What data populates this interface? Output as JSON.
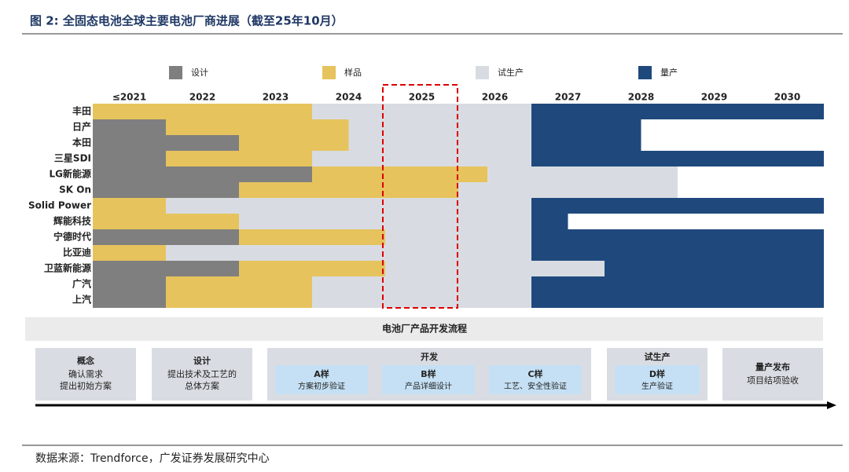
{
  "header": {
    "title": "图 2:  全固态电池全球主要电池厂商进展（截至25年10月）"
  },
  "chart_data": {
    "type": "gantt",
    "columns": [
      "≤2021",
      "2022",
      "2023",
      "2024",
      "2025",
      "2026",
      "2027",
      "2028",
      "2029",
      "2030"
    ],
    "xlim": [
      0,
      10
    ],
    "categories": [
      "丰田",
      "日产",
      "本田",
      "三星SDI",
      "LG新能源",
      "SK On",
      "Solid Power",
      "辉能科技",
      "宁德时代",
      "比亚迪",
      "卫蓝新能源",
      "广汽",
      "上汽"
    ],
    "series": [
      {
        "name": "设计",
        "color": "#7f7f7f",
        "values": [
          null,
          [
            0,
            1
          ],
          [
            0,
            2
          ],
          [
            0,
            1
          ],
          [
            0,
            3
          ],
          [
            0,
            2
          ],
          null,
          null,
          [
            0,
            2
          ],
          null,
          [
            0,
            2
          ],
          [
            0,
            1
          ],
          [
            0,
            1
          ]
        ]
      },
      {
        "name": "样品",
        "color": "#e6c35c",
        "values": [
          [
            0,
            3
          ],
          [
            1,
            3.5
          ],
          [
            2,
            3.5
          ],
          [
            1,
            3
          ],
          [
            3,
            5.4
          ],
          [
            2,
            5
          ],
          [
            0,
            1
          ],
          [
            0,
            2
          ],
          [
            2,
            4
          ],
          [
            0,
            1
          ],
          [
            2,
            4
          ],
          [
            1,
            3
          ],
          [
            1,
            3
          ]
        ]
      },
      {
        "name": "试生产",
        "color": "#d8dce2",
        "values": [
          [
            3,
            6
          ],
          [
            3.5,
            6
          ],
          [
            3.5,
            6
          ],
          [
            3,
            6
          ],
          [
            5.4,
            8
          ],
          [
            5,
            8
          ],
          [
            1,
            6
          ],
          [
            2,
            6
          ],
          [
            4,
            6
          ],
          [
            1,
            6
          ],
          [
            4,
            7
          ],
          [
            3,
            6
          ],
          [
            3,
            6
          ]
        ]
      },
      {
        "name": "量产",
        "color": "#1f497d",
        "values": [
          [
            6,
            10
          ],
          [
            6,
            7.5
          ],
          [
            6,
            7.5
          ],
          [
            6,
            10
          ],
          null,
          null,
          [
            6,
            10
          ],
          [
            6,
            6.5
          ],
          [
            6,
            10
          ],
          [
            6,
            10
          ],
          [
            7,
            10
          ],
          [
            6,
            10
          ],
          [
            6,
            10
          ]
        ]
      }
    ]
  },
  "process": {
    "title": "电池厂产品开发流程",
    "stages": [
      {
        "title": "概念",
        "lines": [
          "确认需求",
          "提出初始方案"
        ]
      },
      {
        "title": "设计",
        "lines": [
          "提出技术及工艺的",
          "总体方案"
        ]
      },
      {
        "title": "开发",
        "steps": [
          {
            "title": "A样",
            "text": "方案初步验证"
          },
          {
            "title": "B样",
            "text": "产品详细设计"
          },
          {
            "title": "C样",
            "text": "工艺、安全性验证"
          }
        ]
      },
      {
        "title": "试生产",
        "steps": [
          {
            "title": "D样",
            "text": "生产验证"
          }
        ]
      },
      {
        "title": "量产发布",
        "lines": [
          "项目结项验收"
        ]
      }
    ]
  },
  "footer": {
    "source": "数据来源：Trendforce，广发证券发展研究中心"
  }
}
